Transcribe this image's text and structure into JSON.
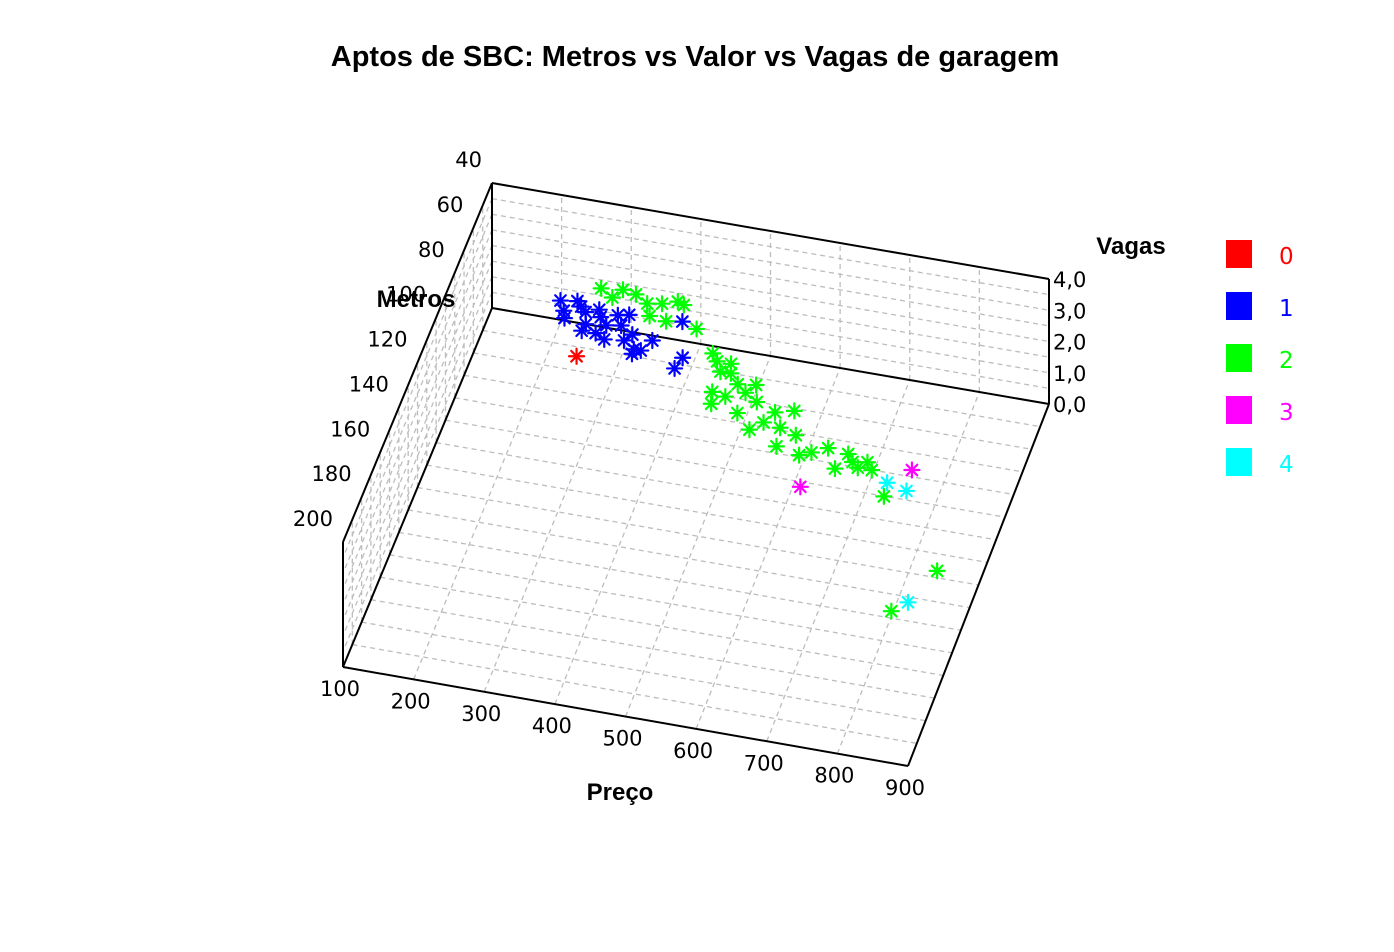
{
  "chart_data": {
    "type": "scatter",
    "title": "Aptos de SBC: Metros vs Valor vs Vagas de garagem",
    "xlabel": "Preço",
    "ylabel": "Metros",
    "zlabel": "Vagas",
    "xlim": [
      100,
      900
    ],
    "ylim": [
      40,
      200
    ],
    "zlim": [
      0,
      4
    ],
    "x_ticks": [
      "100",
      "200",
      "300",
      "400",
      "500",
      "600",
      "700",
      "800",
      "900"
    ],
    "y_ticks": [
      "40",
      "60",
      "80",
      "100",
      "120",
      "140",
      "160",
      "180",
      "200"
    ],
    "z_ticks": [
      "0,0",
      "1,0",
      "2,0",
      "3,0",
      "4,0"
    ],
    "grid": true,
    "legend_position": "right",
    "marker": "asterisk",
    "series": [
      {
        "name": "0",
        "color": "#ff0000",
        "points": [
          [
            240,
            54,
            0
          ]
        ]
      },
      {
        "name": "1",
        "color": "#0000ff",
        "points": [
          [
            205,
            45,
            1
          ],
          [
            215,
            49,
            1
          ],
          [
            220,
            52,
            1
          ],
          [
            228,
            44,
            1
          ],
          [
            236,
            46,
            1
          ],
          [
            245,
            48,
            1
          ],
          [
            252,
            53,
            1
          ],
          [
            262,
            46,
            1
          ],
          [
            268,
            49,
            1
          ],
          [
            280,
            52,
            1
          ],
          [
            270,
            56,
            1
          ],
          [
            290,
            47,
            1
          ],
          [
            300,
            51,
            1
          ],
          [
            305,
            46,
            1
          ],
          [
            320,
            54,
            1
          ],
          [
            312,
            57,
            1
          ],
          [
            330,
            60,
            1
          ],
          [
            340,
            60,
            1
          ],
          [
            330,
            62,
            1
          ],
          [
            350,
            55,
            1
          ],
          [
            380,
            45,
            1
          ],
          [
            400,
            60,
            1
          ],
          [
            395,
            65,
            1
          ],
          [
            250,
            56,
            1
          ],
          [
            285,
            58,
            1
          ]
        ]
      },
      {
        "name": "2",
        "color": "#00ff00",
        "points": [
          [
            270,
            50,
            2
          ],
          [
            290,
            53,
            2
          ],
          [
            300,
            49,
            2
          ],
          [
            320,
            50,
            2
          ],
          [
            340,
            53,
            2
          ],
          [
            350,
            58,
            2
          ],
          [
            360,
            52,
            2
          ],
          [
            380,
            50,
            2
          ],
          [
            375,
            59,
            2
          ],
          [
            390,
            51,
            2
          ],
          [
            420,
            60,
            2
          ],
          [
            455,
            69,
            2
          ],
          [
            465,
            72,
            2
          ],
          [
            475,
            76,
            2
          ],
          [
            485,
            72,
            2
          ],
          [
            490,
            76,
            2
          ],
          [
            505,
            80,
            2
          ],
          [
            520,
            83,
            2
          ],
          [
            530,
            79,
            2
          ],
          [
            540,
            86,
            2
          ],
          [
            475,
            85,
            2
          ],
          [
            480,
            90,
            2
          ],
          [
            495,
            86,
            2
          ],
          [
            520,
            92,
            2
          ],
          [
            545,
            98,
            2
          ],
          [
            560,
            94,
            2
          ],
          [
            570,
            89,
            2
          ],
          [
            585,
            95,
            2
          ],
          [
            590,
            103,
            2
          ],
          [
            595,
            87,
            2
          ],
          [
            610,
            97,
            2
          ],
          [
            625,
            105,
            2
          ],
          [
            640,
            103,
            2
          ],
          [
            660,
            100,
            2
          ],
          [
            680,
            108,
            2
          ],
          [
            690,
            101,
            2
          ],
          [
            700,
            104,
            2
          ],
          [
            710,
            106,
            2
          ],
          [
            720,
            103,
            2
          ],
          [
            730,
            106,
            2
          ],
          [
            760,
            116,
            2
          ],
          [
            830,
            163,
            2
          ],
          [
            870,
            143,
            2
          ]
        ]
      },
      {
        "name": "3",
        "color": "#ff00ff",
        "points": [
          [
            660,
            131,
            3
          ],
          [
            800,
            116,
            3
          ]
        ]
      },
      {
        "name": "4",
        "color": "#00ffff",
        "points": [
          [
            790,
            136,
            4
          ],
          [
            820,
            138,
            4
          ],
          [
            880,
            184,
            4
          ]
        ]
      }
    ]
  }
}
